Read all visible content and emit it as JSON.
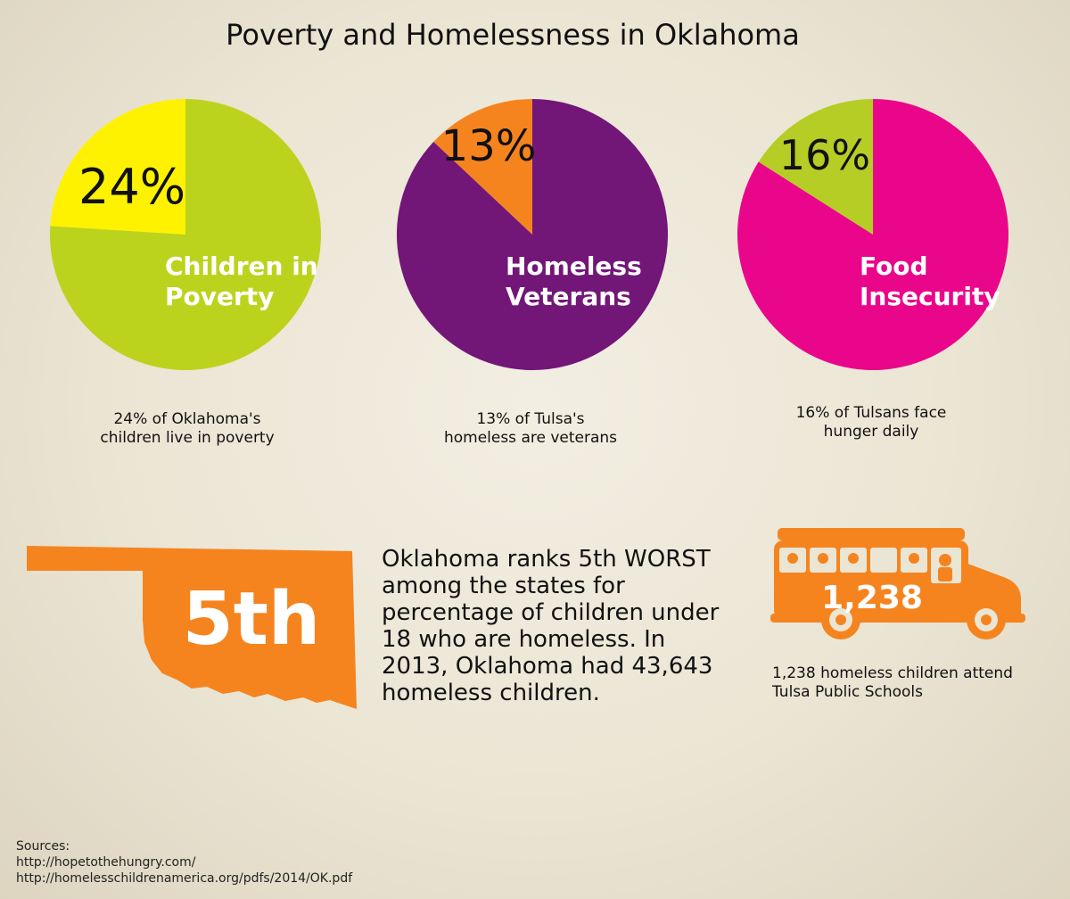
{
  "title": "Poverty and Homelessness in Oklahoma",
  "colors": {
    "green": "#bcd31e",
    "yellow": "#fef200",
    "purple": "#721678",
    "orange": "#f5841f",
    "magenta": "#ea068a",
    "lime": "#b6cd26"
  },
  "chart_data": [
    {
      "type": "pie",
      "title": "Children in Poverty",
      "slices": [
        {
          "label": "24%",
          "value": 24,
          "color": "#fef200"
        },
        {
          "label": "",
          "value": 76,
          "color": "#bcd31e"
        }
      ]
    },
    {
      "type": "pie",
      "title": "Homeless Veterans",
      "slices": [
        {
          "label": "13%",
          "value": 13,
          "color": "#f5841f"
        },
        {
          "label": "",
          "value": 87,
          "color": "#721678"
        }
      ]
    },
    {
      "type": "pie",
      "title": "Food Insecurity",
      "slices": [
        {
          "label": "16%",
          "value": 16,
          "color": "#b6cd26"
        },
        {
          "label": "",
          "value": 84,
          "color": "#ea068a"
        }
      ]
    }
  ],
  "pies": [
    {
      "pct_label": "24%",
      "label_line1": "Children in",
      "label_line2": "Poverty",
      "caption_line1": "24% of Oklahoma's",
      "caption_line2": "children live in poverty"
    },
    {
      "pct_label": "13%",
      "label_line1": "Homeless",
      "label_line2": "Veterans",
      "caption_line1": "13%  of Tulsa's",
      "caption_line2": "homeless are veterans"
    },
    {
      "pct_label": "16%",
      "label_line1": "Food",
      "label_line2": "Insecurity",
      "caption_line1": "16% of Tulsans face",
      "caption_line2": "hunger daily"
    }
  ],
  "map": {
    "rank_label": "5th",
    "text_lines": [
      "Oklahoma ranks 5th WORST",
      "among the states for",
      "percentage of children under",
      "18 who are homeless.  In",
      "2013, Oklahoma had 43,643",
      "homeless children."
    ]
  },
  "bus": {
    "count_label": "1,238",
    "caption_line1": "1,238 homeless children attend",
    "caption_line2": "Tulsa Public Schools"
  },
  "sources": {
    "heading": "Sources:",
    "line1": "http://hopetothehungry.com/",
    "line2": "http://homelesschildrenamerica.org/pdfs/2014/OK.pdf"
  }
}
